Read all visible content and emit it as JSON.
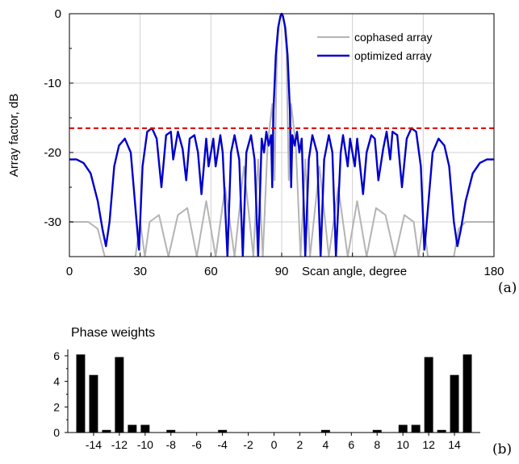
{
  "chart_data": [
    {
      "type": "line",
      "ylabel": "Array factor, dB",
      "xlabel": "Scan angle, degree",
      "xlim": [
        0,
        180
      ],
      "ylim": [
        -35,
        0
      ],
      "x_ticks": [
        0,
        30,
        60,
        90,
        120,
        150,
        180
      ],
      "x_tick_labels": [
        "0",
        "30",
        "60",
        "90",
        "",
        "",
        "180"
      ],
      "y_ticks": [
        0,
        -10,
        -20,
        -30
      ],
      "y_tick_labels": [
        "0",
        "-10",
        "-20",
        "-30"
      ],
      "grid": true,
      "legend_position": "top-right",
      "series": [
        {
          "name": "cophased array",
          "color": "#b4b4b4",
          "style": "solid",
          "x": [
            0,
            8,
            12,
            15,
            17,
            20,
            24,
            28,
            30,
            32,
            34,
            38,
            42,
            46,
            50,
            54,
            58,
            62,
            66,
            70,
            74,
            78,
            80,
            82,
            84,
            85,
            86,
            87,
            88,
            89,
            90,
            91,
            92,
            93,
            94,
            95,
            96,
            98,
            100,
            102,
            106,
            110,
            114,
            118,
            122,
            126,
            130,
            134,
            138,
            142,
            146,
            148,
            150,
            152,
            156,
            160,
            163,
            165,
            168,
            172,
            180
          ],
          "y": [
            -30,
            -30,
            -31,
            -35,
            -35,
            -35,
            -35,
            -35,
            -30,
            -35,
            -30,
            -29,
            -35,
            -29,
            -28,
            -35,
            -27,
            -35,
            -25,
            -35,
            -22,
            -35,
            -21,
            -35,
            -19,
            -16,
            -13,
            -24,
            -5,
            -1,
            0,
            -1,
            -5,
            -24,
            -13,
            -16,
            -19,
            -35,
            -21,
            -35,
            -22,
            -35,
            -25,
            -35,
            -27,
            -35,
            -28,
            -29,
            -35,
            -29,
            -30,
            -35,
            -30,
            -35,
            -35,
            -35,
            -35,
            -31,
            -30,
            -30,
            -30
          ]
        },
        {
          "name": "optimized array",
          "color": "#0000cc",
          "style": "solid",
          "x": [
            0,
            3,
            6,
            9,
            12,
            14,
            15.5,
            17,
            19,
            21,
            23.5,
            26,
            28,
            29.5,
            31,
            33,
            35,
            37,
            39,
            41,
            43,
            44,
            46,
            48,
            49.5,
            51,
            53,
            54.5,
            56,
            58,
            59,
            61,
            62,
            64,
            65,
            67,
            68.5,
            70,
            72,
            73.5,
            75,
            77,
            78.5,
            80,
            81.5,
            82.5,
            83.5,
            84.5,
            85.5,
            86,
            86.5,
            87.5,
            88.5,
            89.5,
            90,
            90.5,
            91.5,
            92.5,
            93.5,
            94,
            94.5,
            95.5,
            96.5,
            97.5,
            98.5,
            100,
            101.5,
            103,
            105,
            106.5,
            108,
            110,
            111.5,
            113,
            115,
            116,
            118,
            119,
            121,
            122,
            124.5,
            126,
            128,
            129.5,
            131,
            133,
            134.5,
            136,
            137,
            139,
            141,
            143,
            145,
            147,
            149,
            150.5,
            152,
            154,
            156.5,
            159,
            161,
            163,
            164.5,
            166,
            168,
            171,
            174,
            177,
            180
          ],
          "y": [
            -21,
            -21,
            -21.5,
            -23,
            -27,
            -31,
            -33.5,
            -30,
            -22,
            -19,
            -18,
            -20,
            -28,
            -34,
            -22,
            -17,
            -16.5,
            -18,
            -25,
            -17.5,
            -17,
            -21,
            -17,
            -19.5,
            -24,
            -18,
            -17.5,
            -20,
            -26,
            -18,
            -22,
            -18,
            -22,
            -17.5,
            -20,
            -35,
            -20,
            -17.5,
            -21,
            -35,
            -20,
            -17.5,
            -21,
            -35,
            -18,
            -20,
            -17,
            -19,
            -17.5,
            -25,
            -14,
            -6,
            -2,
            -0.3,
            0,
            -0.3,
            -2,
            -6,
            -14,
            -25,
            -17.5,
            -19,
            -17,
            -20,
            -18,
            -35,
            -21,
            -17.5,
            -20,
            -35,
            -21,
            -17.5,
            -20,
            -35,
            -20,
            -17.5,
            -22,
            -18,
            -22,
            -18,
            -26,
            -20,
            -17.5,
            -18,
            -24,
            -19.5,
            -17,
            -21,
            -17,
            -17.5,
            -25,
            -18,
            -16.5,
            -17,
            -22,
            -34,
            -28,
            -20,
            -18,
            -19,
            -22,
            -30,
            -33.5,
            -31,
            -27,
            -23,
            -21.5,
            -21,
            -21
          ]
        },
        {
          "name": "",
          "color": "#e00000",
          "style": "dashed",
          "x": [
            0,
            180
          ],
          "y": [
            -16.5,
            -16.5
          ]
        }
      ],
      "panel_tag": "(a)"
    },
    {
      "type": "bar",
      "title": "Phase weights",
      "xlim": [
        -16,
        16
      ],
      "ylim": [
        0,
        6.5
      ],
      "x_ticks": [
        -14,
        -12,
        -10,
        -8,
        -6,
        -4,
        -2,
        0,
        2,
        4,
        6,
        8,
        10,
        12,
        14
      ],
      "x_tick_labels": [
        "-14",
        "-12",
        "-10",
        "-8",
        "-6",
        "-4",
        "-2",
        "0",
        "2",
        "4",
        "6",
        "8",
        "10",
        "12",
        "14"
      ],
      "y_ticks": [
        0,
        2,
        4,
        6
      ],
      "y_tick_labels": [
        "0",
        "2",
        "4",
        "6"
      ],
      "grid": false,
      "bar_color": "#000000",
      "x": [
        -15,
        -14,
        -13,
        -12,
        -11,
        -10,
        -9,
        -8,
        -7,
        -6,
        -5,
        -4,
        -3,
        -2,
        -1,
        0,
        1,
        2,
        3,
        4,
        5,
        6,
        7,
        8,
        9,
        10,
        11,
        12,
        13,
        14,
        15
      ],
      "values": [
        6.1,
        4.5,
        0.2,
        5.9,
        0.6,
        0.6,
        0,
        0.2,
        0,
        0,
        0,
        0.2,
        0,
        0,
        0,
        0,
        0,
        0,
        0,
        0.2,
        0,
        0,
        0,
        0.2,
        0,
        0.6,
        0.6,
        5.9,
        0.2,
        4.5,
        6.1
      ],
      "panel_tag": "(b)"
    }
  ]
}
